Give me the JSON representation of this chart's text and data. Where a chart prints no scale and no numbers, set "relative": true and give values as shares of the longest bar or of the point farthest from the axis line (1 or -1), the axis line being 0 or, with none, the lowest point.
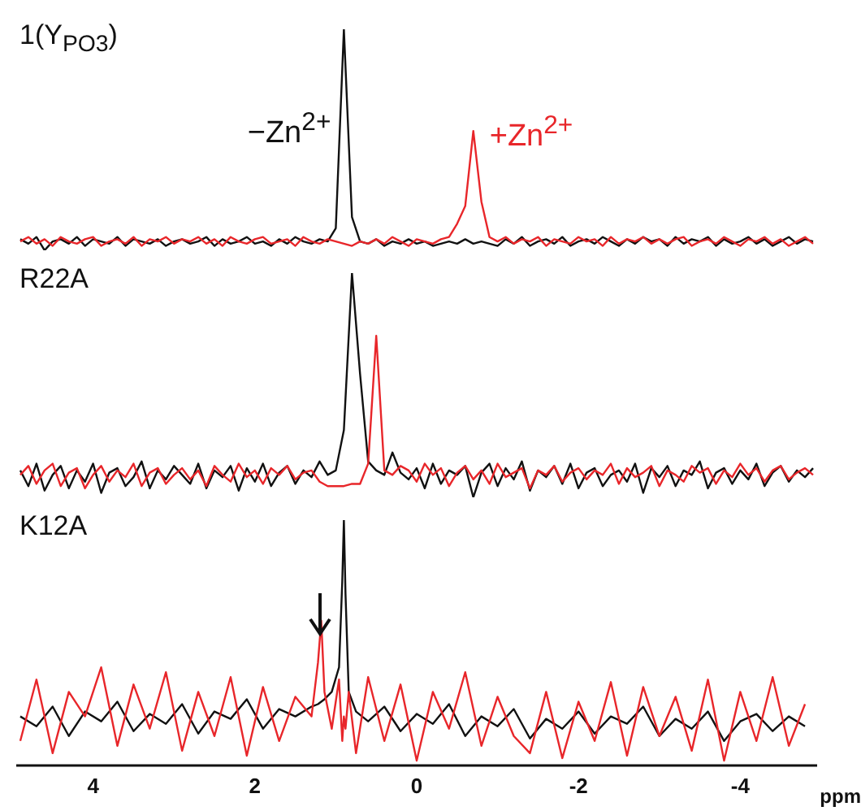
{
  "chart_data": [
    {
      "type": "line",
      "title": "1(Y$_{PO3}$)",
      "relative": true,
      "tick_labels": false,
      "legend": false,
      "grid": false,
      "marker": "none",
      "categories": [
        null,
        null,
        null,
        null,
        null,
        null,
        null,
        null,
        null,
        null,
        null,
        null,
        null,
        null,
        null,
        null,
        null,
        null,
        null,
        null,
        null,
        null,
        null,
        null,
        null,
        null,
        null,
        null,
        null,
        null,
        null,
        null,
        null,
        null,
        null,
        null,
        null,
        null,
        null,
        null,
        null,
        null,
        null,
        null,
        null,
        null,
        null,
        null,
        null,
        null,
        null,
        null,
        null,
        null,
        null,
        null,
        null,
        null,
        null,
        null,
        null,
        null,
        null,
        null,
        null,
        null,
        null,
        null,
        null,
        null,
        null,
        null,
        null,
        null,
        null,
        null,
        null,
        null,
        null,
        null,
        null,
        null,
        null,
        null,
        null,
        null,
        null,
        null,
        null,
        null,
        null,
        null,
        null,
        null,
        null,
        null,
        null,
        null,
        null
      ],
      "series": [
        {
          "name": "−Zn$^{2+}$",
          "color": "#111111",
          "values": [
            0.05,
            0.03,
            0.06,
            0,
            0.04,
            0.05,
            0.03,
            0.06,
            0.02,
            0.05,
            0.04,
            0.03,
            0.06,
            0.02,
            0.05,
            0.04,
            0.03,
            0.05,
            0.02,
            0.04,
            0.05,
            0.03,
            0.04,
            0.06,
            0.02,
            0.05,
            0.03,
            0.04,
            0.06,
            0.03,
            0.04,
            0.02,
            0.05,
            0.03,
            0.06,
            0.04,
            0.03,
            0.05,
            0.04,
            0.1,
            1,
            0.15,
            0.04,
            0.03,
            0.05,
            0.02,
            0.04,
            0.03,
            0.05,
            0.03,
            0.04,
            0.02,
            0.03,
            0.04,
            0.03,
            0.05,
            0.03,
            0.04,
            0.03,
            0.02,
            0.05,
            0.03,
            0.06,
            0.02,
            0.04,
            0.05,
            0.03,
            0.06,
            0.02,
            0.04,
            0.05,
            0.03,
            0.06,
            0.04,
            0.02,
            0.05,
            0.03,
            0.06,
            0.04,
            0.05,
            0.02,
            0.06,
            0.03,
            0.05,
            0.04,
            0.06,
            0.02,
            0.05,
            0.03,
            0.04,
            0.06,
            0.03,
            0.05,
            0.02,
            0.04,
            0.06,
            0.03,
            0.05,
            0.04
          ]
        },
        {
          "name": "+Zn$^{2+}$",
          "color": "#e8262a",
          "values": [
            0.04,
            0.06,
            0.03,
            0.05,
            0.02,
            0.06,
            0.04,
            0.03,
            0.05,
            0.06,
            0.02,
            0.04,
            0.05,
            0.03,
            0.06,
            0.02,
            0.05,
            0.04,
            0.06,
            0.03,
            0.05,
            0.04,
            0.06,
            0.03,
            0.05,
            0.02,
            0.06,
            0.04,
            0.03,
            0.05,
            0.06,
            0.03,
            0.04,
            0.05,
            0.02,
            0.06,
            0.04,
            0.03,
            0.05,
            0.04,
            0.03,
            0.02,
            0.04,
            0.03,
            0.05,
            0.03,
            0.06,
            0.04,
            0.02,
            0.05,
            0.04,
            0.03,
            0.05,
            0.06,
            0.12,
            0.2,
            0.54,
            0.22,
            0.06,
            0.04,
            0.06,
            0.03,
            0.05,
            0.04,
            0.06,
            0.02,
            0.05,
            0.04,
            0.03,
            0.06,
            0.04,
            0.05,
            0.02,
            0.06,
            0.03,
            0.05,
            0.04,
            0.06,
            0.03,
            0.05,
            0.03,
            0.05,
            0.06,
            0.02,
            0.04,
            0.05,
            0.03,
            0.06,
            0.04,
            0.02,
            0.05,
            0.04,
            0.06,
            0.03,
            0.05,
            0.02,
            0.04,
            0.06,
            0.03
          ]
        }
      ]
    },
    {
      "type": "line",
      "title": "R22A",
      "relative": true,
      "tick_labels": false,
      "legend": false,
      "grid": false,
      "marker": "none",
      "categories": [
        null,
        null,
        null,
        null,
        null,
        null,
        null,
        null,
        null,
        null,
        null,
        null,
        null,
        null,
        null,
        null,
        null,
        null,
        null,
        null,
        null,
        null,
        null,
        null,
        null,
        null,
        null,
        null,
        null,
        null,
        null,
        null,
        null,
        null,
        null,
        null,
        null,
        null,
        null,
        null,
        null,
        null,
        null,
        null,
        null,
        null,
        null,
        null,
        null,
        null,
        null,
        null,
        null,
        null,
        null,
        null,
        null,
        null,
        null,
        null,
        null,
        null,
        null,
        null,
        null,
        null,
        null,
        null,
        null,
        null,
        null,
        null,
        null,
        null,
        null,
        null,
        null,
        null,
        null,
        null,
        null,
        null,
        null,
        null,
        null,
        null,
        null,
        null,
        null,
        null,
        null,
        null,
        null,
        null,
        null,
        null,
        null,
        null,
        null
      ],
      "series": [
        {
          "color": "#111111",
          "values": [
            0.12,
            0.05,
            0.15,
            0.03,
            0.1,
            0.14,
            0.04,
            0.12,
            0.07,
            0.15,
            0.02,
            0.11,
            0.13,
            0.05,
            0.09,
            0.16,
            0.04,
            0.12,
            0.08,
            0.14,
            0.1,
            0.06,
            0.15,
            0.04,
            0.12,
            0.09,
            0.14,
            0.03,
            0.13,
            0.07,
            0.15,
            0.05,
            0.11,
            0.14,
            0.06,
            0.12,
            0.09,
            0.16,
            0.1,
            0.12,
            0.3,
            1,
            0.55,
            0.16,
            0.12,
            0.1,
            0.2,
            0.11,
            0.08,
            0.13,
            0.04,
            0.15,
            0.06,
            0.12,
            0.1,
            0.14,
            0,
            0.11,
            0.15,
            0.05,
            0.13,
            0.08,
            0.16,
            0.03,
            0.12,
            0.09,
            0.14,
            0.06,
            0.15,
            0.04,
            0.11,
            0.13,
            0.05,
            0.1,
            0.12,
            0.07,
            0.15,
            0.02,
            0.13,
            0.09,
            0.14,
            0.05,
            0.12,
            0.1,
            0.16,
            0.04,
            0.11,
            0.13,
            0.06,
            0.12,
            0.08,
            0.15,
            0.05,
            0.11,
            0.14,
            0.07,
            0.12,
            0.09,
            0.13
          ]
        },
        {
          "color": "#e8262a",
          "values": [
            0.1,
            0.14,
            0.06,
            0.12,
            0.15,
            0.05,
            0.11,
            0.13,
            0.04,
            0.1,
            0.14,
            0.07,
            0.12,
            0.09,
            0.15,
            0.05,
            0.11,
            0.13,
            0.06,
            0.1,
            0.13,
            0.08,
            0.12,
            0.05,
            0.14,
            0.1,
            0.07,
            0.15,
            0.09,
            0.12,
            0.06,
            0.13,
            0.1,
            0.14,
            0.08,
            0.11,
            0.12,
            0.07,
            0.05,
            0.05,
            0.05,
            0.06,
            0.06,
            0.15,
            0.72,
            0.12,
            0.1,
            0.14,
            0.12,
            0.07,
            0.15,
            0.1,
            0.13,
            0.05,
            0.11,
            0.14,
            0.08,
            0.12,
            0.06,
            0.15,
            0.09,
            0.11,
            0.13,
            0.04,
            0.12,
            0.1,
            0.14,
            0.07,
            0.11,
            0.13,
            0.08,
            0.12,
            0.1,
            0.15,
            0.06,
            0.13,
            0.09,
            0.11,
            0.14,
            0.05,
            0.12,
            0.1,
            0.07,
            0.14,
            0.11,
            0.13,
            0.06,
            0.12,
            0.09,
            0.15,
            0.1,
            0.13,
            0.07,
            0.12,
            0.14,
            0.08,
            0.11,
            0.13,
            0.1
          ]
        }
      ]
    },
    {
      "type": "line",
      "title": "K12A",
      "relative": true,
      "xlim": [
        4.95,
        -4.95
      ],
      "xticks": [
        4,
        2,
        0,
        -2,
        -4
      ],
      "tick_labels": "x",
      "xlabel": "ppm",
      "legend": false,
      "grid": false,
      "marker": "none",
      "x": [
        4.9,
        4.7,
        4.5,
        4.3,
        4.1,
        3.9,
        3.7,
        3.5,
        3.3,
        3.1,
        2.9,
        2.7,
        2.5,
        2.3,
        2.1,
        1.9,
        1.7,
        1.5,
        1.3,
        1.22,
        1.18,
        1.14,
        1.05,
        0.96,
        0.92,
        0.9,
        0.88,
        0.84,
        0.75,
        0.6,
        0.4,
        0.2,
        0.0,
        -0.2,
        -0.4,
        -0.6,
        -0.8,
        -1.0,
        -1.2,
        -1.4,
        -1.6,
        -1.8,
        -2.0,
        -2.2,
        -2.4,
        -2.6,
        -2.8,
        -3.0,
        -3.2,
        -3.4,
        -3.6,
        -3.8,
        -4.0,
        -4.2,
        -4.4,
        -4.6,
        -4.8
      ],
      "series": [
        {
          "color": "#111111",
          "values": [
            0.2,
            0.16,
            0.24,
            0.12,
            0.22,
            0.18,
            0.26,
            0.14,
            0.21,
            0.17,
            0.25,
            0.13,
            0.22,
            0.19,
            0.27,
            0.15,
            0.23,
            0.2,
            0.24,
            0.25,
            0.26,
            0.27,
            0.3,
            0.4,
            0.75,
            1,
            0.7,
            0.3,
            0.22,
            0.18,
            0.24,
            0.14,
            0.21,
            0.17,
            0.25,
            0.12,
            0.2,
            0.16,
            0.23,
            0.11,
            0.19,
            0.15,
            0.22,
            0.13,
            0.2,
            0.17,
            0.24,
            0.12,
            0.19,
            0.15,
            0.22,
            0.1,
            0.18,
            0.21,
            0.14,
            0.2,
            0.16
          ]
        },
        {
          "color": "#e8262a",
          "values": [
            0.1,
            0.35,
            0.05,
            0.3,
            0.2,
            0.4,
            0.08,
            0.33,
            0.15,
            0.38,
            0.06,
            0.3,
            0.12,
            0.36,
            0.04,
            0.32,
            0.1,
            0.28,
            0.2,
            0.42,
            0.59,
            0.3,
            0.15,
            0.35,
            0.1,
            0.2,
            0.15,
            0.3,
            0.05,
            0.36,
            0.1,
            0.33,
            0.02,
            0.3,
            0.15,
            0.38,
            0.08,
            0.28,
            0.12,
            0.05,
            0.3,
            0.03,
            0.26,
            0.1,
            0.34,
            0.04,
            0.32,
            0.12,
            0.28,
            0.06,
            0.35,
            0.02,
            0.3,
            0.1,
            0.36,
            0.08,
            0.25
          ]
        }
      ]
    }
  ]
}
